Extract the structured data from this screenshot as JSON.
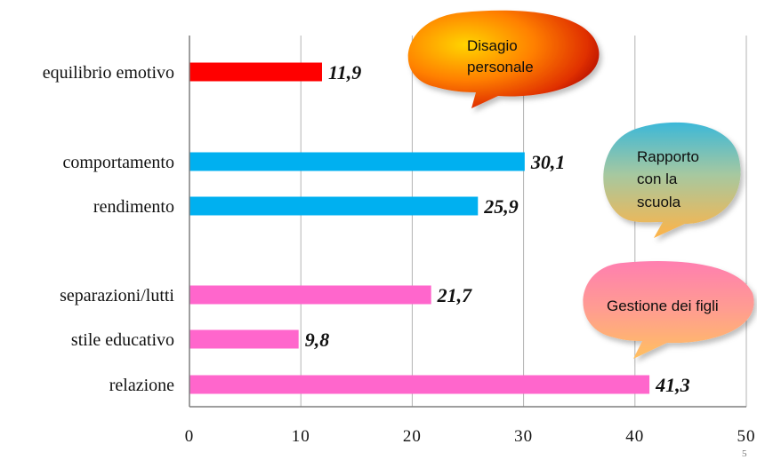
{
  "chart_data": {
    "type": "bar",
    "orientation": "horizontal",
    "xlim": [
      0,
      50
    ],
    "xticks": [
      "0",
      "10",
      "20",
      "30",
      "40",
      "50"
    ],
    "grid": "vertical",
    "categories": [
      "equilibrio emotivo",
      "comportamento",
      "rendimento",
      "separazioni/lutti",
      "stile educativo",
      "relazione"
    ],
    "values": [
      11.9,
      30.1,
      25.9,
      21.7,
      9.8,
      41.3
    ],
    "value_labels": [
      "11,9",
      "30,1",
      "25,9",
      "21,7",
      "9,8",
      "41,3"
    ],
    "bar_colors": [
      "#ff0000",
      "#00b0f0",
      "#00b0f0",
      "#ff66cc",
      "#ff66cc",
      "#ff66cc"
    ],
    "groups": [
      {
        "label": "Disagio personale",
        "lines": [
          "Disagio",
          "personale"
        ],
        "members": [
          "equilibrio emotivo"
        ]
      },
      {
        "label": "Rapporto con la scuola",
        "lines": [
          "Rapporto",
          "con la",
          "scuola"
        ],
        "members": [
          "comportamento",
          "rendimento"
        ]
      },
      {
        "label": "Gestione dei figli",
        "lines": [
          "Gestione dei figli"
        ],
        "members": [
          "separazioni/lutti",
          "stile educativo",
          "relazione"
        ]
      }
    ]
  },
  "page_number": "5",
  "colors": {
    "grid": "#b3b3b3",
    "axis": "#7f7f7f"
  }
}
